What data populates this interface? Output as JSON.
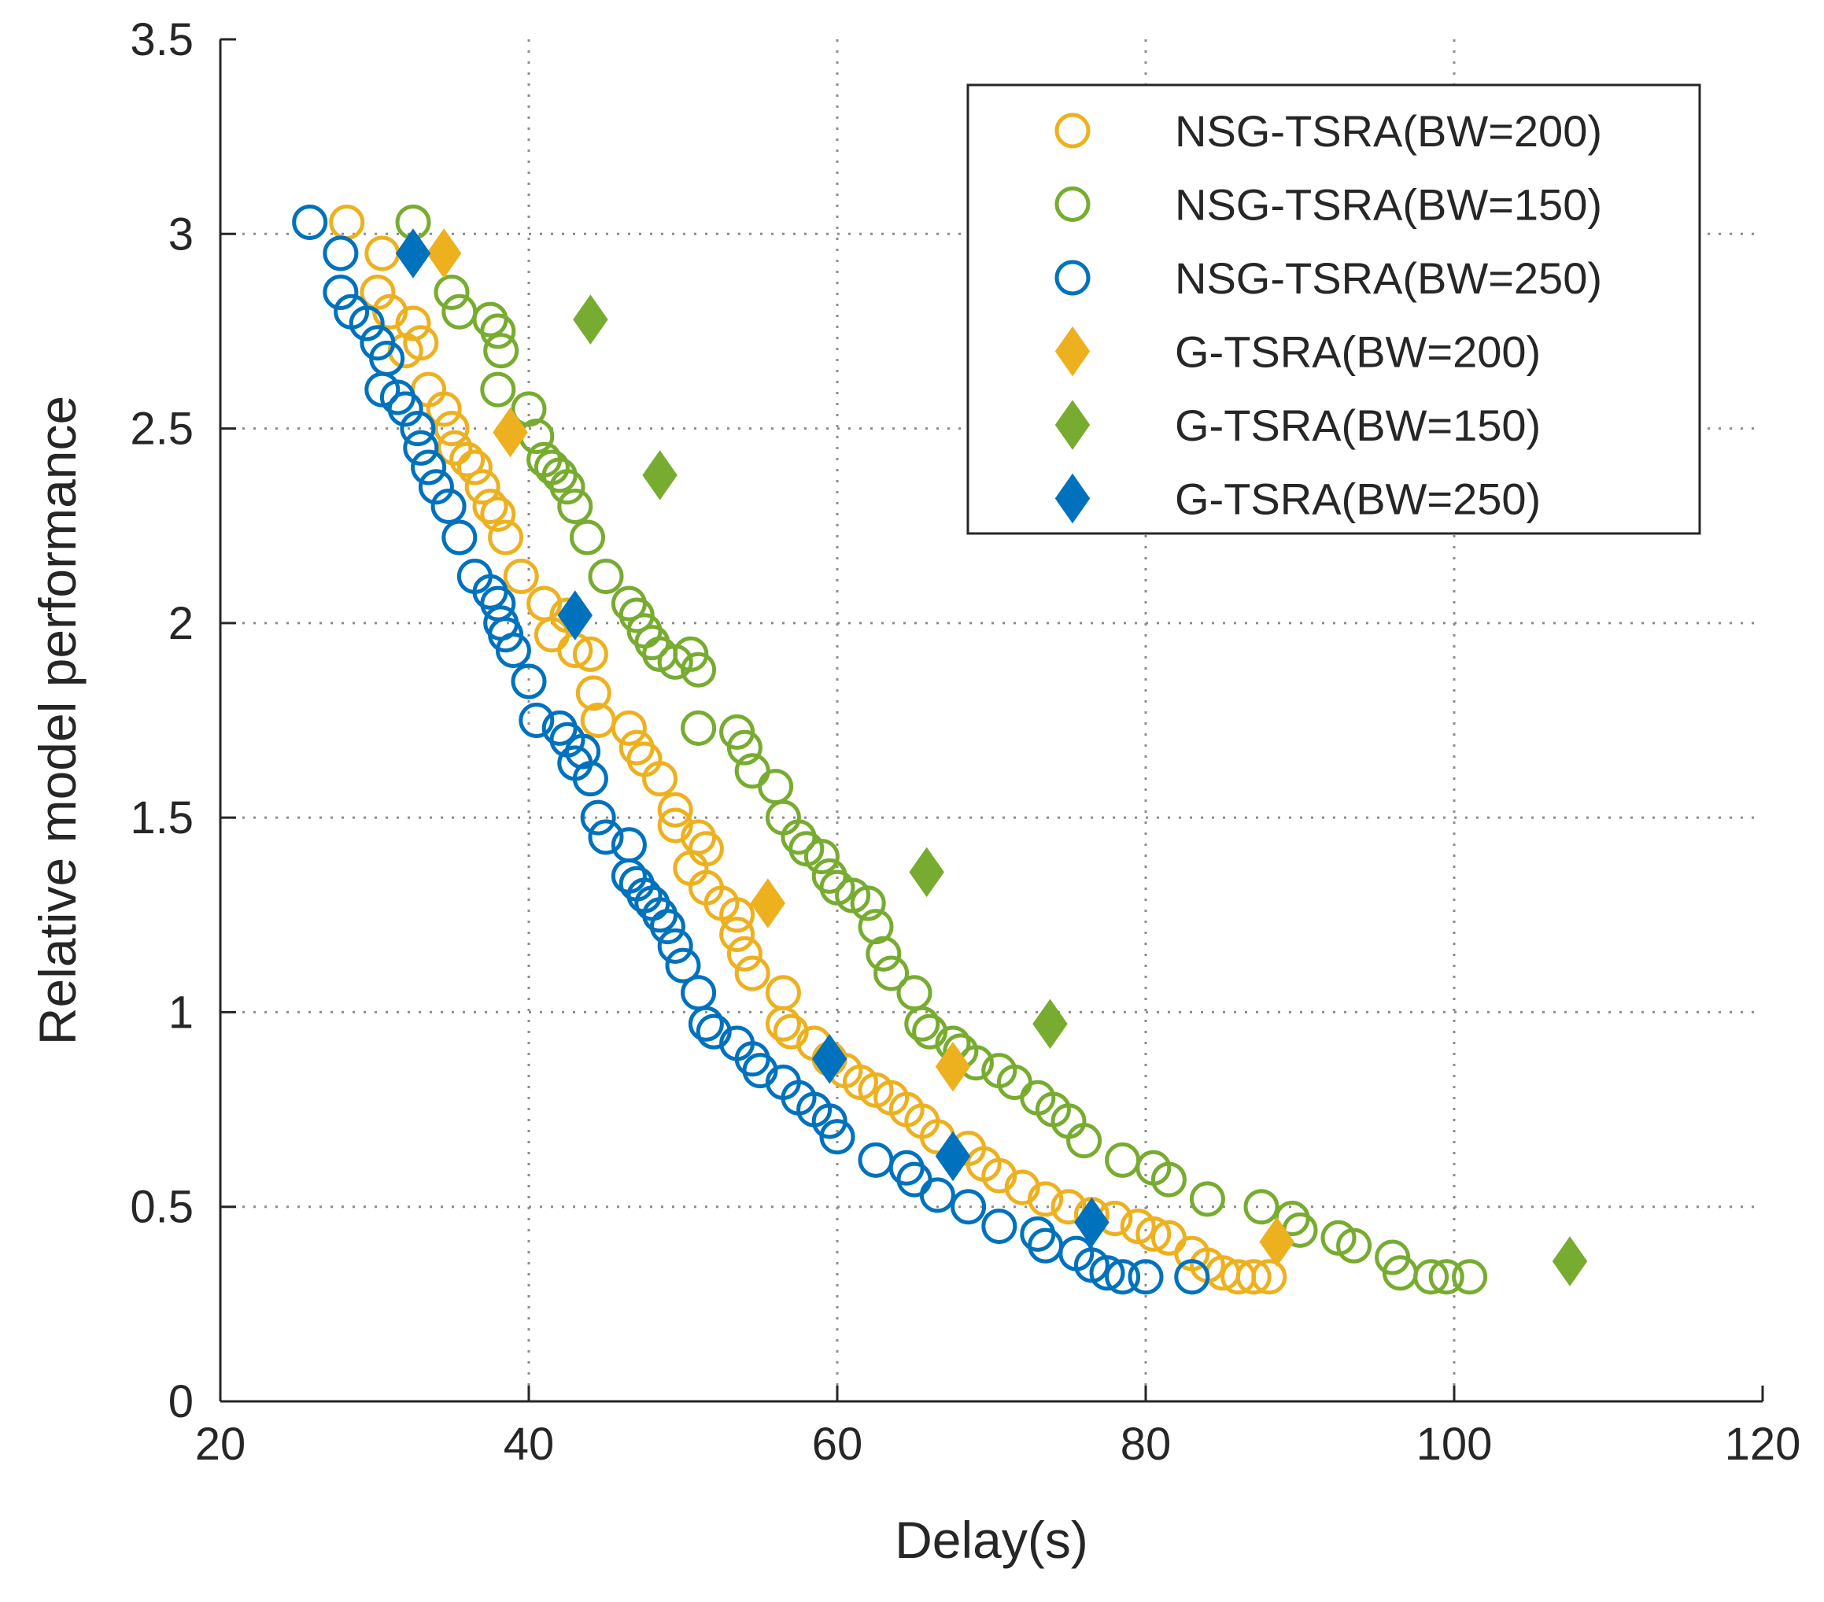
{
  "chart_data": {
    "type": "scatter",
    "title": "",
    "xlabel": "Delay(s)",
    "ylabel": "Relative model performance",
    "xlim": [
      20,
      120
    ],
    "ylim": [
      0,
      3.5
    ],
    "xticks": [
      20,
      40,
      60,
      80,
      100,
      120
    ],
    "xtick_labels": [
      "20",
      "40",
      "60",
      "80",
      "100",
      "120"
    ],
    "yticks": [
      0,
      0.5,
      1,
      1.5,
      2,
      2.5,
      3,
      3.5
    ],
    "ytick_labels": [
      "0",
      "0.5",
      "1",
      "1.5",
      "2",
      "2.5",
      "3",
      "3.5"
    ],
    "grid": true,
    "legend_position": "top-right",
    "series": [
      {
        "name": "NSG-TSRA(BW=200)",
        "marker": "circle-open",
        "color": "#EDB120",
        "points": [
          [
            28.2,
            3.03
          ],
          [
            30.5,
            2.95
          ],
          [
            30.2,
            2.85
          ],
          [
            31.0,
            2.8
          ],
          [
            32.5,
            2.77
          ],
          [
            33.0,
            2.72
          ],
          [
            32.0,
            2.7
          ],
          [
            33.5,
            2.6
          ],
          [
            34.5,
            2.55
          ],
          [
            35.0,
            2.5
          ],
          [
            35.2,
            2.45
          ],
          [
            36.0,
            2.42
          ],
          [
            36.5,
            2.4
          ],
          [
            37.0,
            2.35
          ],
          [
            37.5,
            2.3
          ],
          [
            38.0,
            2.28
          ],
          [
            38.5,
            2.22
          ],
          [
            39.5,
            2.12
          ],
          [
            41.0,
            2.05
          ],
          [
            42.5,
            2.02
          ],
          [
            41.5,
            1.97
          ],
          [
            43.0,
            1.93
          ],
          [
            44.0,
            1.92
          ],
          [
            44.2,
            1.82
          ],
          [
            44.5,
            1.75
          ],
          [
            46.5,
            1.73
          ],
          [
            47.0,
            1.68
          ],
          [
            47.5,
            1.65
          ],
          [
            48.5,
            1.6
          ],
          [
            49.5,
            1.52
          ],
          [
            49.5,
            1.48
          ],
          [
            51.0,
            1.45
          ],
          [
            51.5,
            1.42
          ],
          [
            50.5,
            1.37
          ],
          [
            51.5,
            1.32
          ],
          [
            52.5,
            1.28
          ],
          [
            53.5,
            1.25
          ],
          [
            53.5,
            1.2
          ],
          [
            54.0,
            1.15
          ],
          [
            54.5,
            1.1
          ],
          [
            56.5,
            1.05
          ],
          [
            56.5,
            0.97
          ],
          [
            57.0,
            0.95
          ],
          [
            58.5,
            0.92
          ],
          [
            59.5,
            0.88
          ],
          [
            60.5,
            0.85
          ],
          [
            61.5,
            0.82
          ],
          [
            62.5,
            0.8
          ],
          [
            63.5,
            0.78
          ],
          [
            64.5,
            0.75
          ],
          [
            65.5,
            0.72
          ],
          [
            66.5,
            0.68
          ],
          [
            68.5,
            0.65
          ],
          [
            69.5,
            0.61
          ],
          [
            70.5,
            0.58
          ],
          [
            72.0,
            0.55
          ],
          [
            73.5,
            0.52
          ],
          [
            75.0,
            0.5
          ],
          [
            76.5,
            0.48
          ],
          [
            78.0,
            0.47
          ],
          [
            79.5,
            0.45
          ],
          [
            80.5,
            0.43
          ],
          [
            81.5,
            0.42
          ],
          [
            83.0,
            0.38
          ],
          [
            84.0,
            0.35
          ],
          [
            85.0,
            0.33
          ],
          [
            86.0,
            0.32
          ],
          [
            87.0,
            0.32
          ],
          [
            88.0,
            0.32
          ]
        ]
      },
      {
        "name": "NSG-TSRA(BW=150)",
        "marker": "circle-open",
        "color": "#77AC30",
        "points": [
          [
            32.5,
            3.03
          ],
          [
            35.0,
            2.85
          ],
          [
            35.5,
            2.8
          ],
          [
            37.5,
            2.78
          ],
          [
            38.0,
            2.75
          ],
          [
            38.2,
            2.7
          ],
          [
            38.0,
            2.6
          ],
          [
            40.0,
            2.55
          ],
          [
            40.5,
            2.48
          ],
          [
            41.0,
            2.42
          ],
          [
            41.5,
            2.4
          ],
          [
            42.0,
            2.38
          ],
          [
            42.5,
            2.35
          ],
          [
            43.0,
            2.3
          ],
          [
            43.8,
            2.22
          ],
          [
            45.0,
            2.12
          ],
          [
            46.5,
            2.05
          ],
          [
            47.0,
            2.02
          ],
          [
            47.5,
            1.98
          ],
          [
            48.0,
            1.95
          ],
          [
            48.5,
            1.92
          ],
          [
            49.5,
            1.9
          ],
          [
            50.5,
            1.92
          ],
          [
            51.0,
            1.88
          ],
          [
            51.0,
            1.73
          ],
          [
            53.5,
            1.72
          ],
          [
            54.0,
            1.68
          ],
          [
            54.5,
            1.62
          ],
          [
            56.0,
            1.58
          ],
          [
            56.5,
            1.5
          ],
          [
            57.5,
            1.45
          ],
          [
            58.0,
            1.42
          ],
          [
            59.0,
            1.4
          ],
          [
            59.5,
            1.35
          ],
          [
            60.0,
            1.32
          ],
          [
            61.0,
            1.3
          ],
          [
            62.0,
            1.28
          ],
          [
            62.5,
            1.22
          ],
          [
            63.0,
            1.15
          ],
          [
            63.5,
            1.1
          ],
          [
            65.0,
            1.05
          ],
          [
            65.5,
            0.97
          ],
          [
            66.0,
            0.95
          ],
          [
            67.5,
            0.92
          ],
          [
            68.0,
            0.9
          ],
          [
            69.0,
            0.87
          ],
          [
            70.5,
            0.85
          ],
          [
            71.5,
            0.82
          ],
          [
            73.0,
            0.78
          ],
          [
            74.0,
            0.75
          ],
          [
            75.0,
            0.72
          ],
          [
            76.0,
            0.67
          ],
          [
            78.5,
            0.62
          ],
          [
            80.5,
            0.6
          ],
          [
            81.5,
            0.57
          ],
          [
            84.0,
            0.52
          ],
          [
            87.5,
            0.5
          ],
          [
            89.5,
            0.47
          ],
          [
            90.0,
            0.44
          ],
          [
            92.5,
            0.42
          ],
          [
            93.5,
            0.4
          ],
          [
            96.0,
            0.37
          ],
          [
            96.5,
            0.33
          ],
          [
            98.5,
            0.32
          ],
          [
            99.5,
            0.32
          ],
          [
            101.0,
            0.32
          ]
        ]
      },
      {
        "name": "NSG-TSRA(BW=250)",
        "marker": "circle-open",
        "color": "#0072BD",
        "points": [
          [
            25.8,
            3.03
          ],
          [
            27.8,
            2.95
          ],
          [
            27.8,
            2.85
          ],
          [
            28.5,
            2.8
          ],
          [
            29.5,
            2.77
          ],
          [
            30.2,
            2.72
          ],
          [
            30.8,
            2.68
          ],
          [
            30.5,
            2.6
          ],
          [
            31.5,
            2.58
          ],
          [
            32.0,
            2.55
          ],
          [
            32.8,
            2.5
          ],
          [
            33.0,
            2.45
          ],
          [
            33.5,
            2.4
          ],
          [
            34.0,
            2.35
          ],
          [
            34.8,
            2.3
          ],
          [
            35.5,
            2.22
          ],
          [
            36.5,
            2.12
          ],
          [
            37.5,
            2.08
          ],
          [
            38.0,
            2.05
          ],
          [
            38.2,
            2.0
          ],
          [
            38.5,
            1.97
          ],
          [
            39.0,
            1.93
          ],
          [
            40.0,
            1.85
          ],
          [
            40.5,
            1.75
          ],
          [
            42.0,
            1.73
          ],
          [
            42.5,
            1.7
          ],
          [
            43.5,
            1.67
          ],
          [
            43.0,
            1.64
          ],
          [
            44.0,
            1.6
          ],
          [
            44.5,
            1.5
          ],
          [
            45.0,
            1.45
          ],
          [
            46.5,
            1.43
          ],
          [
            46.5,
            1.35
          ],
          [
            47.0,
            1.33
          ],
          [
            47.5,
            1.3
          ],
          [
            48.0,
            1.28
          ],
          [
            48.5,
            1.25
          ],
          [
            49.0,
            1.22
          ],
          [
            49.5,
            1.17
          ],
          [
            50.0,
            1.12
          ],
          [
            51.0,
            1.05
          ],
          [
            51.5,
            0.97
          ],
          [
            52.0,
            0.95
          ],
          [
            53.5,
            0.92
          ],
          [
            54.5,
            0.88
          ],
          [
            55.0,
            0.85
          ],
          [
            56.5,
            0.82
          ],
          [
            57.5,
            0.78
          ],
          [
            58.5,
            0.75
          ],
          [
            59.5,
            0.72
          ],
          [
            60.0,
            0.68
          ],
          [
            62.5,
            0.62
          ],
          [
            64.5,
            0.6
          ],
          [
            65.0,
            0.57
          ],
          [
            66.5,
            0.53
          ],
          [
            68.5,
            0.5
          ],
          [
            70.5,
            0.45
          ],
          [
            73.0,
            0.43
          ],
          [
            73.5,
            0.4
          ],
          [
            75.5,
            0.38
          ],
          [
            76.5,
            0.35
          ],
          [
            77.5,
            0.33
          ],
          [
            78.5,
            0.32
          ],
          [
            80.0,
            0.32
          ],
          [
            83.0,
            0.32
          ]
        ]
      },
      {
        "name": "G-TSRA(BW=200)",
        "marker": "diamond-filled",
        "color": "#EDB120",
        "points": [
          [
            34.5,
            2.95
          ],
          [
            38.8,
            2.49
          ],
          [
            55.5,
            1.28
          ],
          [
            67.5,
            0.86
          ],
          [
            88.5,
            0.41
          ]
        ]
      },
      {
        "name": "G-TSRA(BW=150)",
        "marker": "diamond-filled",
        "color": "#77AC30",
        "points": [
          [
            44.0,
            2.78
          ],
          [
            48.5,
            2.38
          ],
          [
            65.8,
            1.36
          ],
          [
            73.8,
            0.97
          ],
          [
            107.5,
            0.36
          ]
        ]
      },
      {
        "name": "G-TSRA(BW=250)",
        "marker": "diamond-filled",
        "color": "#0072BD",
        "points": [
          [
            32.5,
            2.95
          ],
          [
            43.0,
            2.02
          ],
          [
            59.5,
            0.88
          ],
          [
            67.5,
            0.63
          ],
          [
            76.5,
            0.46
          ]
        ]
      }
    ]
  }
}
